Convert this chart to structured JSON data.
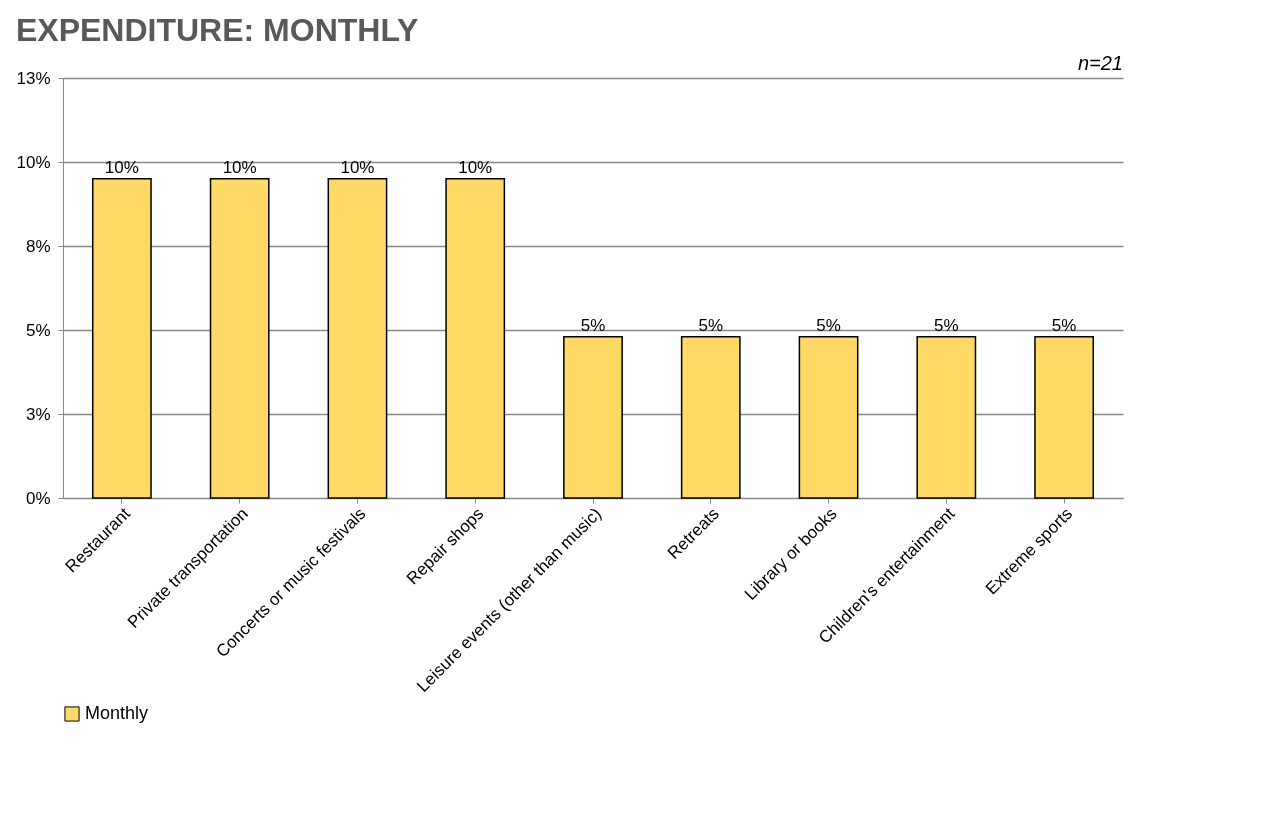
{
  "chart_data": {
    "type": "bar",
    "title": "EXPENDITURE: MONTHLY",
    "annotations": [
      "n=21"
    ],
    "categories": [
      "Restaurant",
      "Private transportation",
      "Concerts or music festivals",
      "Repair shops",
      "Leisure events (other than music)",
      "Retreats",
      "Library or books",
      "Children's entertainment",
      "Extreme sports"
    ],
    "series": [
      {
        "name": "Monthly",
        "color": "#ffd966",
        "values": [
          9.5,
          9.5,
          9.5,
          9.5,
          4.8,
          4.8,
          4.8,
          4.8,
          4.8
        ],
        "value_labels": [
          "10%",
          "10%",
          "10%",
          "10%",
          "5%",
          "5%",
          "5%",
          "5%",
          "5%"
        ]
      }
    ],
    "ylim": [
      0,
      12.5
    ],
    "yticks": [
      {
        "value": 0,
        "label": "0%"
      },
      {
        "value": 2.5,
        "label": "3%"
      },
      {
        "value": 5,
        "label": "5%"
      },
      {
        "value": 7.5,
        "label": "8%"
      },
      {
        "value": 10,
        "label": "10%"
      },
      {
        "value": 12.5,
        "label": "13%"
      }
    ],
    "grid": "y",
    "legend": "bottom"
  }
}
